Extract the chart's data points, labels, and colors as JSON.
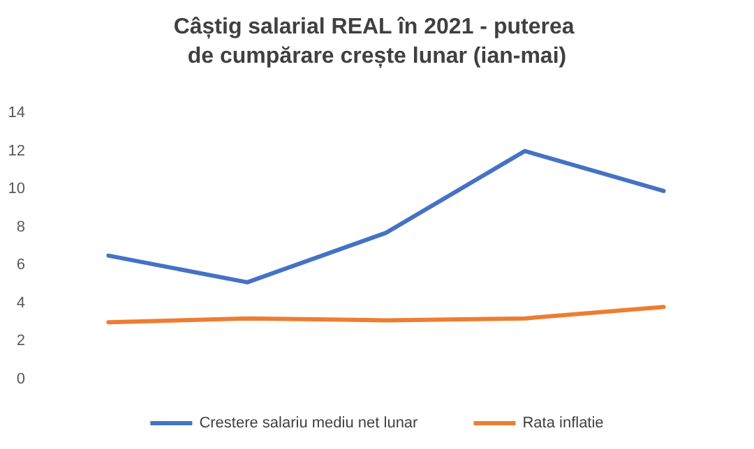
{
  "chart_data": {
    "type": "line",
    "title": "Câștig salarial REAL în 2021 - puterea de cumpărare crește lunar (ian-mai)",
    "categories": [
      null,
      null,
      null,
      null,
      null
    ],
    "series": [
      {
        "name": "Crestere salariu mediu net lunar",
        "color": "#4472c4",
        "values": [
          6.5,
          5.1,
          7.7,
          12.0,
          9.9
        ]
      },
      {
        "name": "Rata inflatie",
        "color": "#ed7d31",
        "values": [
          3.0,
          3.2,
          3.1,
          3.2,
          3.8
        ]
      }
    ],
    "ylim": [
      0,
      14
    ],
    "yticks": [
      0,
      2,
      4,
      6,
      8,
      10,
      12,
      14
    ],
    "grid": false,
    "legend": "bottom",
    "marker": "none",
    "line_style": "solid"
  }
}
